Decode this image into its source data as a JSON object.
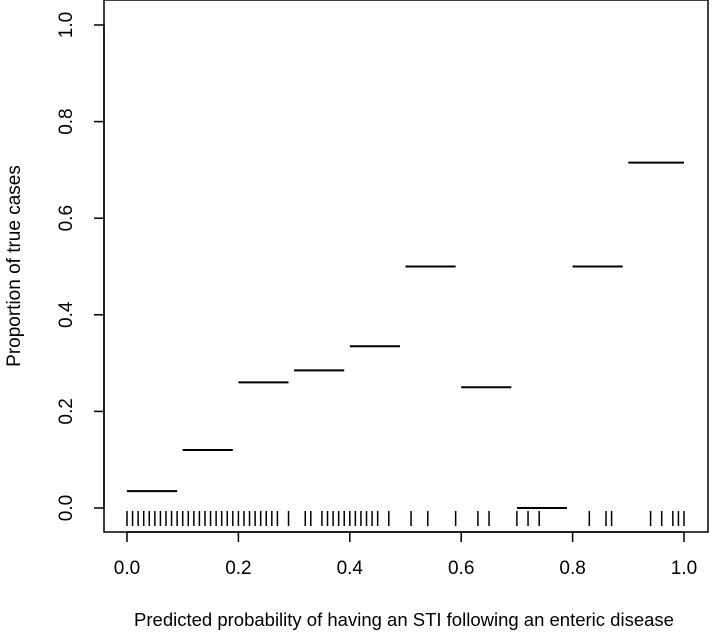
{
  "chart_data": {
    "type": "step",
    "xlabel": "Predicted probability of having an STI following an enteric disease",
    "ylabel": "Proportion of true cases",
    "xlim": [
      0.0,
      1.0
    ],
    "ylim": [
      0.0,
      1.0
    ],
    "x_ticks": [
      {
        "value": 0.0,
        "label": "0.0"
      },
      {
        "value": 0.2,
        "label": "0.2"
      },
      {
        "value": 0.4,
        "label": "0.4"
      },
      {
        "value": 0.6,
        "label": "0.6"
      },
      {
        "value": 0.8,
        "label": "0.8"
      },
      {
        "value": 1.0,
        "label": "1.0"
      }
    ],
    "y_ticks": [
      {
        "value": 0.0,
        "label": "0.0"
      },
      {
        "value": 0.2,
        "label": "0.2"
      },
      {
        "value": 0.4,
        "label": "0.4"
      },
      {
        "value": 0.6,
        "label": "0.6"
      },
      {
        "value": 0.8,
        "label": "0.8"
      },
      {
        "value": 1.0,
        "label": "1.0"
      }
    ],
    "grid": false,
    "legend": "none",
    "segments": [
      {
        "x0": 0.0,
        "x1": 0.09,
        "y": 0.035
      },
      {
        "x0": 0.1,
        "x1": 0.19,
        "y": 0.12
      },
      {
        "x0": 0.2,
        "x1": 0.29,
        "y": 0.26
      },
      {
        "x0": 0.3,
        "x1": 0.39,
        "y": 0.285
      },
      {
        "x0": 0.4,
        "x1": 0.49,
        "y": 0.335
      },
      {
        "x0": 0.5,
        "x1": 0.59,
        "y": 0.5
      },
      {
        "x0": 0.6,
        "x1": 0.69,
        "y": 0.25
      },
      {
        "x0": 0.7,
        "x1": 0.79,
        "y": 0.0
      },
      {
        "x0": 0.8,
        "x1": 0.89,
        "y": 0.5
      },
      {
        "x0": 0.9,
        "x1": 1.0,
        "y": 0.715
      }
    ],
    "rug": [
      0.0,
      0.01,
      0.02,
      0.03,
      0.04,
      0.05,
      0.06,
      0.07,
      0.08,
      0.09,
      0.1,
      0.11,
      0.12,
      0.13,
      0.14,
      0.15,
      0.16,
      0.17,
      0.18,
      0.19,
      0.2,
      0.21,
      0.22,
      0.23,
      0.24,
      0.25,
      0.26,
      0.27,
      0.29,
      0.32,
      0.33,
      0.35,
      0.36,
      0.37,
      0.38,
      0.39,
      0.4,
      0.41,
      0.42,
      0.43,
      0.44,
      0.45,
      0.47,
      0.51,
      0.54,
      0.59,
      0.63,
      0.65,
      0.7,
      0.72,
      0.74,
      0.83,
      0.86,
      0.87,
      0.94,
      0.96,
      0.98,
      0.99,
      1.0
    ]
  }
}
